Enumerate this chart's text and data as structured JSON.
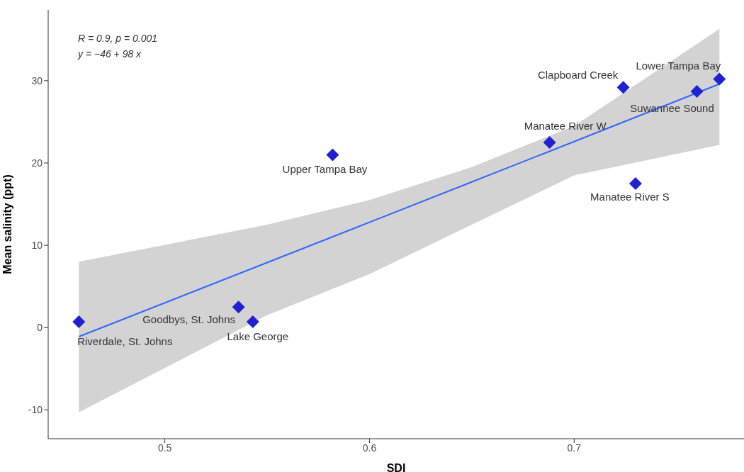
{
  "chart_data": {
    "type": "scatter",
    "xlabel": "SDI",
    "ylabel": "Mean salinity (ppt)",
    "xlim": [
      0.443,
      0.783
    ],
    "xticks": [
      0.5,
      0.6,
      0.7
    ],
    "ylim": [
      -13.5,
      38.6
    ],
    "yticks": [
      -10,
      0,
      10,
      20,
      30
    ],
    "grid": false,
    "legend": false,
    "series": [
      {
        "type": "scatter",
        "marker": "diamond",
        "color": "#2222cc",
        "x": [
          0.458,
          0.536,
          0.543,
          0.582,
          0.688,
          0.724,
          0.73,
          0.76,
          0.771
        ],
        "values": [
          0.7,
          2.5,
          0.7,
          21.0,
          22.5,
          29.2,
          17.5,
          28.7,
          30.2
        ]
      },
      {
        "type": "line",
        "color": "#3366ff",
        "x": [
          0.458,
          0.55,
          0.6,
          0.65,
          0.7,
          0.771
        ],
        "values": [
          -1.1,
          7.9,
          12.8,
          17.7,
          22.6,
          29.6
        ],
        "lower": [
          -10.3,
          1.5,
          6.5,
          12.5,
          18.5,
          22.2
        ],
        "upper": [
          8.0,
          12.5,
          15.5,
          19.5,
          24.5,
          36.3
        ]
      }
    ],
    "annotations": [
      "R = 0.9, p = 0.001",
      "y = −46 + 98 x",
      {
        "text": "Riverdale, St. Johns",
        "x": 0.458,
        "y": 0.7
      },
      {
        "text": "Goodbys, St. Johns",
        "x": 0.536,
        "y": 2.5
      },
      {
        "text": "Lake George",
        "x": 0.543,
        "y": 0.7
      },
      {
        "text": "Upper Tampa Bay",
        "x": 0.582,
        "y": 21.0
      },
      {
        "text": "Manatee River W",
        "x": 0.688,
        "y": 22.5
      },
      {
        "text": "Clapboard Creek",
        "x": 0.724,
        "y": 29.2
      },
      {
        "text": "Manatee River S",
        "x": 0.73,
        "y": 17.5
      },
      {
        "text": "Suwannee Sound",
        "x": 0.76,
        "y": 28.7
      },
      {
        "text": "Lower Tampa Bay",
        "x": 0.771,
        "y": 30.2
      }
    ]
  }
}
